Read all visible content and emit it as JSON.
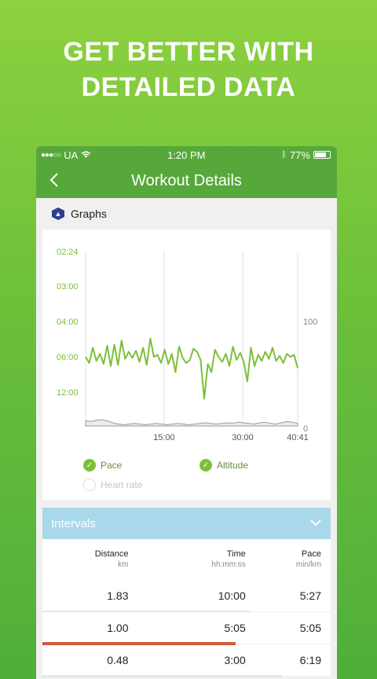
{
  "headline": {
    "line1": "GET BETTER WITH",
    "line2": "DETAILED DATA"
  },
  "status_bar": {
    "carrier": "UA",
    "time": "1:20 PM",
    "battery": "77%"
  },
  "nav": {
    "title": "Workout Details"
  },
  "graphs": {
    "title": "Graphs"
  },
  "chart_data": {
    "type": "line",
    "x_ticks": [
      "15:00",
      "30:00",
      "40:41"
    ],
    "y_left_ticks": [
      "02:24",
      "03:00",
      "04:00",
      "06:00",
      "12:00"
    ],
    "y_right_ticks": [
      "100",
      "0"
    ],
    "series": [
      {
        "name": "Pace",
        "color": "#7dbf3a",
        "values": [
          57,
          63,
          48,
          61,
          54,
          64,
          46,
          66,
          45,
          65,
          41,
          59,
          52,
          58,
          51,
          62,
          48,
          65,
          39,
          57,
          55,
          63,
          50,
          64,
          54,
          72,
          47,
          58,
          63,
          60,
          49,
          52,
          60,
          98,
          64,
          72,
          50,
          57,
          62,
          54,
          66,
          47,
          60,
          53,
          62,
          81,
          48,
          66,
          55,
          61,
          52,
          59,
          48,
          61,
          56,
          63,
          54,
          57,
          55,
          68
        ]
      },
      {
        "name": "Altitude",
        "color": "#aaaaaa",
        "values": [
          8,
          7,
          9,
          10,
          8,
          5,
          3,
          2,
          3,
          4,
          3,
          2,
          3,
          4,
          3,
          2,
          3,
          4,
          3,
          2,
          3,
          4,
          5,
          4,
          3,
          4,
          5,
          4,
          6,
          5,
          4,
          3,
          5,
          6,
          4,
          3,
          5,
          7,
          6,
          4
        ]
      }
    ],
    "legend": [
      "Pace",
      "Altitude",
      "Heart rate"
    ]
  },
  "legend": {
    "pace": "Pace",
    "altitude": "Altitude",
    "heart_rate": "Heart rate"
  },
  "intervals": {
    "title": "Intervals",
    "columns": [
      {
        "label": "Distance",
        "unit": "km"
      },
      {
        "label": "Time",
        "unit": "hh:mm:ss"
      },
      {
        "label": "Pace",
        "unit": "min/km"
      }
    ],
    "rows": [
      {
        "distance": "1.83",
        "time": "10:00",
        "pace": "5:27",
        "progress": 0.72
      },
      {
        "distance": "1.00",
        "time": "5:05",
        "pace": "5:05",
        "progress": 0.67
      },
      {
        "distance": "0.48",
        "time": "3:00",
        "pace": "6:19",
        "progress": 0.83
      }
    ]
  }
}
